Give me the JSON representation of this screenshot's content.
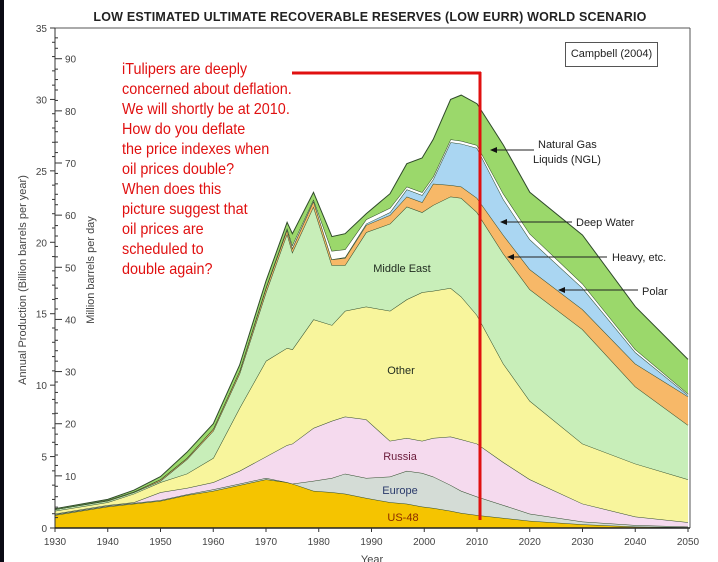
{
  "chart_data": {
    "type": "area",
    "stacked": true,
    "value_mode": "cumulative_top",
    "title": "LOW ESTIMATED ULTIMATE RECOVERABLE RESERVES (LOW EURR) WORLD SCENARIO",
    "source": "Campbell (2004)",
    "xlabel": "Year",
    "ylabel": "Annual Production (Billion barrels per year)",
    "y2label": "Million barrels per day",
    "xlim": [
      1930,
      2050
    ],
    "ylim": [
      0,
      35
    ],
    "xticks": [
      "1930",
      "1940",
      "1950",
      "1960",
      "1970",
      "1980",
      "1990",
      "2000",
      "2010",
      "2020",
      "2030",
      "2040",
      "2050"
    ],
    "yticks": [
      "0",
      "5",
      "10",
      "15",
      "20",
      "25",
      "30",
      "35"
    ],
    "y2ticks": [
      "10",
      "20",
      "30",
      "40",
      "50",
      "60",
      "70",
      "80",
      "90"
    ],
    "x": [
      1930,
      1940,
      1945,
      1950,
      1955,
      1960,
      1965,
      1970,
      1974,
      1975,
      1979,
      1982.5,
      1985,
      1989,
      1993.5,
      1996.7,
      1999.6,
      2001.7,
      2005,
      2007,
      2010,
      2015,
      2020,
      2030,
      2040,
      2050
    ],
    "series": [
      {
        "name": "US-48",
        "color": "#f5c400",
        "values": [
          0.9,
          1.5,
          1.7,
          1.9,
          2.3,
          2.6,
          3.0,
          3.4,
          3.2,
          3.1,
          2.6,
          2.5,
          2.4,
          2.1,
          1.8,
          1.7,
          1.5,
          1.4,
          1.2,
          1.05,
          0.9,
          0.7,
          0.5,
          0.25,
          0.1,
          0.05
        ]
      },
      {
        "name": "Europe",
        "color": "#d4dcd6",
        "values": [
          0.95,
          1.55,
          1.75,
          1.95,
          2.35,
          2.7,
          3.1,
          3.5,
          3.2,
          3.1,
          3.3,
          3.5,
          3.8,
          3.5,
          3.6,
          4.0,
          3.85,
          3.6,
          3.0,
          2.6,
          2.2,
          1.6,
          1.0,
          0.45,
          0.2,
          0.1
        ]
      },
      {
        "name": "Russia",
        "color": "#f5daee",
        "values": [
          1.0,
          1.6,
          1.8,
          2.5,
          2.8,
          3.2,
          4.0,
          5.0,
          5.8,
          5.9,
          7.0,
          7.5,
          7.8,
          7.6,
          6.1,
          6.3,
          6.1,
          6.3,
          6.4,
          6.2,
          5.9,
          4.6,
          3.4,
          1.7,
          0.8,
          0.4
        ]
      },
      {
        "name": "Other",
        "color": "#f8f59c",
        "values": [
          1.2,
          1.8,
          2.4,
          3.2,
          3.8,
          4.9,
          8.4,
          11.7,
          12.6,
          12.5,
          14.6,
          14.2,
          15.2,
          15.5,
          15.2,
          16.0,
          16.5,
          16.6,
          16.8,
          16.2,
          14.9,
          11.5,
          8.9,
          5.9,
          4.5,
          3.4
        ]
      },
      {
        "name": "Middle East",
        "color": "#c8eeb9",
        "values": [
          1.3,
          1.9,
          2.5,
          3.3,
          4.8,
          6.8,
          10.8,
          16.5,
          20.6,
          19.3,
          22.5,
          18.4,
          18.4,
          20.7,
          21.3,
          22.5,
          22.1,
          22.6,
          23.2,
          23.1,
          22.1,
          19.2,
          16.7,
          13.9,
          9.9,
          7.2
        ]
      },
      {
        "name": "Heavy, etc.",
        "color": "#f7b868",
        "values": [
          1.3,
          1.95,
          2.55,
          3.4,
          4.9,
          6.95,
          11.0,
          16.8,
          20.9,
          19.6,
          22.9,
          18.8,
          18.9,
          21.2,
          21.9,
          23.2,
          22.8,
          24.1,
          24.0,
          23.9,
          23.1,
          20.5,
          18.1,
          15.3,
          11.5,
          9.2
        ]
      },
      {
        "name": "Deep Water",
        "color": "#aad6f2",
        "values": [
          1.3,
          1.95,
          2.55,
          3.4,
          4.9,
          6.95,
          11.0,
          16.8,
          20.9,
          19.6,
          22.9,
          18.8,
          18.95,
          21.3,
          22.1,
          23.7,
          23.3,
          24.4,
          27.0,
          26.9,
          26.6,
          23.0,
          20.2,
          16.8,
          12.3,
          9.3
        ]
      },
      {
        "name": "Polar",
        "color": "#ffffff",
        "values": [
          1.3,
          1.95,
          2.55,
          3.4,
          4.9,
          6.95,
          11.0,
          16.85,
          21.0,
          19.8,
          23.0,
          19.4,
          19.5,
          21.6,
          22.4,
          23.9,
          23.5,
          24.6,
          27.2,
          27.1,
          26.8,
          23.4,
          20.6,
          17.1,
          12.5,
          9.4
        ]
      },
      {
        "name": "Natural Gas Liquids (NGL)",
        "color": "#9bd86b",
        "values": [
          1.35,
          2.0,
          2.65,
          3.6,
          5.3,
          7.3,
          11.4,
          17.3,
          21.4,
          20.6,
          23.5,
          20.4,
          20.6,
          22.0,
          23.4,
          25.5,
          25.9,
          27.2,
          30.0,
          30.3,
          29.7,
          26.8,
          23.5,
          20.5,
          15.5,
          11.8
        ]
      }
    ],
    "region_labels": {
      "middle_east": "Middle East",
      "other": "Other",
      "russia": "Russia",
      "europe": "Europe",
      "us48": "US-48"
    },
    "legend_callouts": {
      "ngl_line1": "Natural Gas",
      "ngl_line2": "Liquids (NGL)",
      "deep_water": "Deep Water",
      "heavy": "Heavy, etc.",
      "polar": "Polar"
    },
    "marker_year": 2010
  },
  "annotation": {
    "color": "#e01010",
    "lines": [
      "iTulipers are deeply",
      "concerned about deflation.",
      "We will shortly be at 2010.",
      "How do you deflate",
      "the price indexes when",
      "oil prices double?",
      "When does this",
      "picture suggest that",
      "oil prices are",
      "scheduled to",
      "double again?"
    ]
  }
}
